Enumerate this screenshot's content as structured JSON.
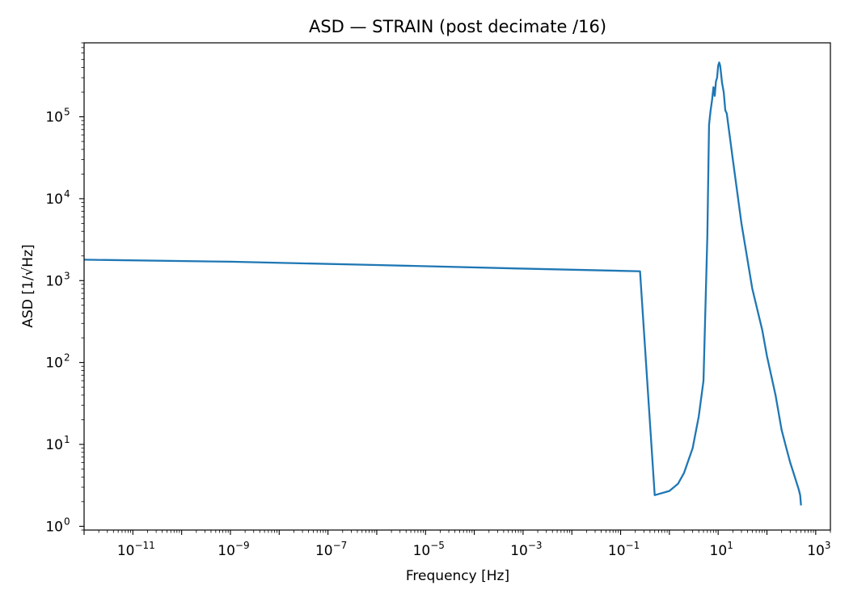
{
  "chart_data": {
    "type": "line",
    "title": "ASD — STRAIN (post decimate /16)",
    "xlabel": "Frequency [Hz]",
    "ylabel": "ASD [1/√Hz]",
    "xscale": "log",
    "yscale": "log",
    "xlim": [
      1e-12,
      2000
    ],
    "ylim": [
      0.9,
      800000
    ],
    "grid": false,
    "x_ticks": [
      {
        "base": "10",
        "exp": "−11",
        "value": 1e-11
      },
      {
        "base": "10",
        "exp": "−9",
        "value": 1e-09
      },
      {
        "base": "10",
        "exp": "−7",
        "value": 1e-07
      },
      {
        "base": "10",
        "exp": "−5",
        "value": 1e-05
      },
      {
        "base": "10",
        "exp": "−3",
        "value": 0.001
      },
      {
        "base": "10",
        "exp": "−1",
        "value": 0.1
      },
      {
        "base": "10",
        "exp": "1",
        "value": 10
      },
      {
        "base": "10",
        "exp": "3",
        "value": 1000
      }
    ],
    "y_ticks": [
      {
        "base": "10",
        "exp": "0",
        "value": 1
      },
      {
        "base": "10",
        "exp": "1",
        "value": 10
      },
      {
        "base": "10",
        "exp": "2",
        "value": 100
      },
      {
        "base": "10",
        "exp": "3",
        "value": 1000
      },
      {
        "base": "10",
        "exp": "4",
        "value": 10000
      },
      {
        "base": "10",
        "exp": "5",
        "value": 100000
      }
    ],
    "series": [
      {
        "color": "#1f77b4",
        "x": [
          1e-12,
          1e-09,
          1e-06,
          0.001,
          0.25,
          0.5,
          1,
          1.5,
          2,
          3,
          4,
          5,
          6,
          6.5,
          7,
          7.5,
          8,
          8.5,
          9,
          9.5,
          10,
          10.5,
          11,
          11.5,
          12,
          13,
          14,
          15,
          20,
          30,
          50,
          80,
          100,
          150,
          200,
          250,
          300,
          350,
          400,
          450,
          480,
          500
        ],
        "y": [
          1800,
          1700,
          1550,
          1400,
          1300,
          2.4,
          2.7,
          3.3,
          4.5,
          9,
          22,
          60,
          3500,
          80000,
          120000,
          160000,
          230000,
          180000,
          270000,
          300000,
          420000,
          460000,
          420000,
          330000,
          260000,
          200000,
          120000,
          110000,
          30000,
          5000,
          800,
          250,
          120,
          40,
          15,
          9,
          6,
          4.5,
          3.5,
          2.8,
          2.4,
          1.8
        ]
      }
    ]
  }
}
